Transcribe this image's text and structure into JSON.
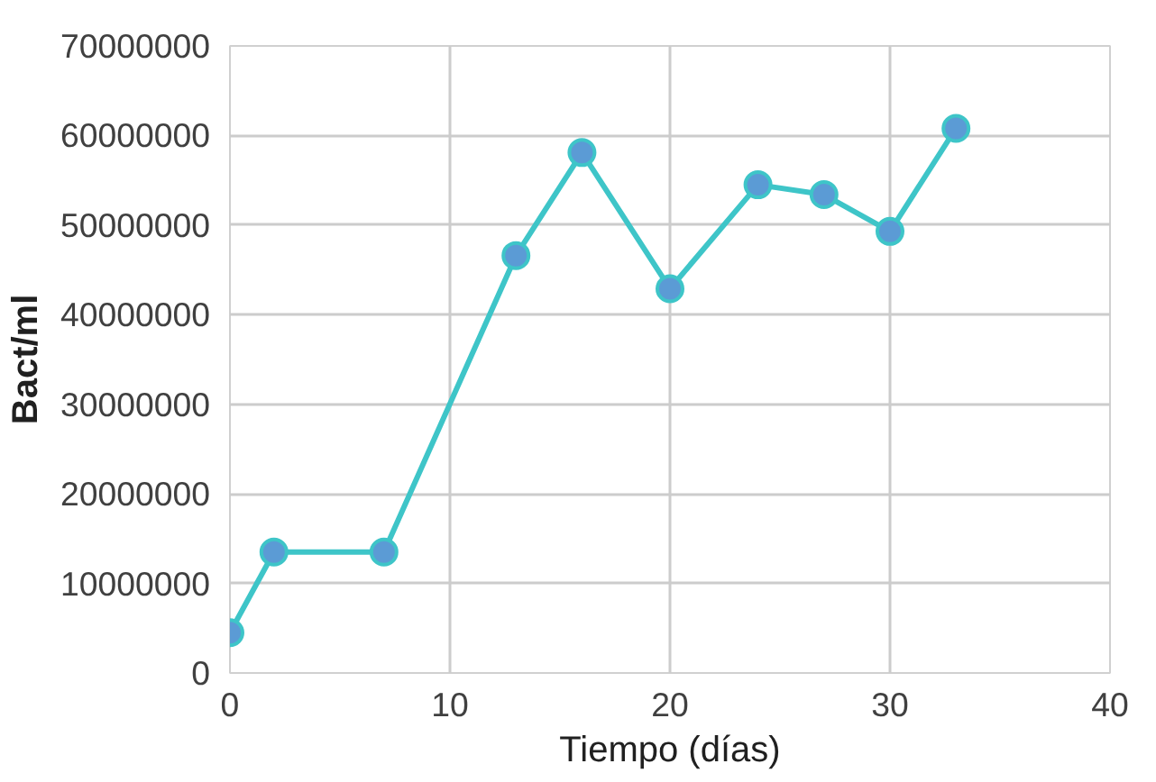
{
  "chart_data": {
    "type": "line",
    "xlabel": "Tiempo (días)",
    "ylabel": "Bact/ml",
    "x": [
      0,
      2,
      7,
      13,
      16,
      20,
      24,
      27,
      30,
      33
    ],
    "series": [
      {
        "color": "#3ec5c8",
        "values": [
          4500000,
          13500000,
          13500000,
          46600000,
          58100000,
          42900000,
          54500000,
          53400000,
          49300000,
          60800000
        ]
      }
    ],
    "xlim": [
      0,
      40
    ],
    "xticks": [
      0,
      10,
      20,
      30,
      40
    ],
    "ylim": [
      0,
      70000000
    ],
    "yticks": [
      0,
      10000000,
      20000000,
      30000000,
      40000000,
      50000000,
      60000000,
      70000000
    ],
    "grid": true,
    "marker": "circle",
    "line_style": "solid"
  }
}
